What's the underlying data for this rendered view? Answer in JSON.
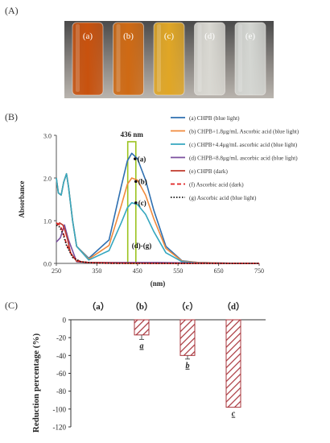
{
  "panels": {
    "a": "(A)",
    "b": "(B)",
    "c": "(C)"
  },
  "photo": {
    "vials": [
      {
        "label": "(a)",
        "color": "#c8520e"
      },
      {
        "label": "(b)",
        "color": "#cf6a14"
      },
      {
        "label": "(c)",
        "color": "#e0a626"
      },
      {
        "label": "(d)",
        "color": "#d9d8d2"
      },
      {
        "label": "(e)",
        "color": "#d4d6d2"
      }
    ]
  },
  "chart_data": [
    {
      "type": "line",
      "xlabel": "(nm)",
      "ylabel": "Absorbance",
      "xlim": [
        250,
        750
      ],
      "ylim": [
        0,
        3.0
      ],
      "xticks": [
        "250",
        "350",
        "450",
        "550",
        "650",
        "750"
      ],
      "yticks": [
        "0.0",
        "1.0",
        "2.0",
        "3.0"
      ],
      "highlight": {
        "label": "436 nm",
        "x_range": [
          426,
          446
        ]
      },
      "curve_labels": [
        {
          "text": "(a)",
          "x": 450,
          "y": 2.45
        },
        {
          "text": "(b)",
          "x": 452,
          "y": 1.92
        },
        {
          "text": "(c)",
          "x": 452,
          "y": 1.42
        },
        {
          "text": "(d)-(g)",
          "x": 436,
          "y": 0.42
        }
      ],
      "legend": [
        "(a) CHPB (blue light)",
        "(b) CHPB+1.8μg/mL  Ascorbic acid (blue light)",
        "(c) CHPB+4.4μg/mL  ascorbic acid (blue light)",
        "(d) CHPB+8.8μg/mL  ascorbic acid (blue light)",
        "(e) CHPB (dark)",
        "(f) Ascorbic acid (dark)",
        "(g) Ascorbic acid (blue light)"
      ],
      "series": [
        {
          "color": "#2e6fb0",
          "style": "solid",
          "x": [
            250,
            255,
            262,
            268,
            275,
            280,
            290,
            300,
            330,
            380,
            410,
            425,
            436,
            450,
            470,
            490,
            520,
            560,
            600,
            650,
            700,
            750
          ],
          "y": [
            2.0,
            1.65,
            1.6,
            1.9,
            2.1,
            1.8,
            1.0,
            0.4,
            0.12,
            0.55,
            1.8,
            2.4,
            2.58,
            2.45,
            1.95,
            1.25,
            0.4,
            0.06,
            0.02,
            0.01,
            0.0,
            0.0
          ]
        },
        {
          "color": "#f08a3c",
          "style": "solid",
          "x": [
            250,
            255,
            262,
            268,
            275,
            280,
            290,
            300,
            330,
            380,
            410,
            425,
            436,
            450,
            470,
            490,
            520,
            560,
            600,
            650,
            700,
            750
          ],
          "y": [
            2.0,
            1.65,
            1.6,
            1.9,
            2.1,
            1.8,
            1.0,
            0.4,
            0.1,
            0.42,
            1.35,
            1.85,
            2.0,
            1.95,
            1.6,
            1.05,
            0.35,
            0.05,
            0.02,
            0.01,
            0.0,
            0.0
          ]
        },
        {
          "color": "#35a7bf",
          "style": "solid",
          "x": [
            250,
            255,
            262,
            268,
            275,
            280,
            290,
            300,
            330,
            380,
            410,
            425,
            436,
            450,
            470,
            490,
            520,
            560,
            600,
            650,
            700,
            750
          ],
          "y": [
            2.0,
            1.65,
            1.6,
            1.9,
            2.1,
            1.8,
            1.0,
            0.4,
            0.08,
            0.3,
            0.95,
            1.3,
            1.42,
            1.38,
            1.15,
            0.75,
            0.25,
            0.04,
            0.01,
            0.0,
            0.0,
            0.0
          ]
        },
        {
          "color": "#7b4f9e",
          "style": "solid",
          "x": [
            250,
            260,
            270,
            280,
            300,
            330,
            400,
            500,
            600,
            750
          ],
          "y": [
            0.5,
            0.6,
            0.9,
            0.55,
            0.04,
            0.02,
            0.02,
            0.02,
            0.01,
            0.0
          ]
        },
        {
          "color": "#c0392b",
          "style": "solid",
          "x": [
            250,
            258,
            266,
            272,
            278,
            285,
            300,
            330,
            400,
            500,
            750
          ],
          "y": [
            0.88,
            0.95,
            0.9,
            0.75,
            0.55,
            0.25,
            0.05,
            0.02,
            0.01,
            0.0,
            0.0
          ]
        },
        {
          "color": "#e02020",
          "style": "dashed",
          "x": [
            250,
            258,
            266,
            275,
            290,
            310,
            340,
            400,
            500,
            750
          ],
          "y": [
            0.95,
            0.9,
            0.75,
            0.45,
            0.15,
            0.04,
            0.01,
            0.0,
            0.0,
            0.0
          ]
        },
        {
          "color": "#111111",
          "style": "dotted",
          "x": [
            250,
            258,
            266,
            275,
            290,
            310,
            340,
            400,
            500,
            750
          ],
          "y": [
            0.9,
            0.85,
            0.7,
            0.42,
            0.14,
            0.04,
            0.01,
            0.0,
            0.0,
            0.0
          ]
        }
      ]
    },
    {
      "type": "bar",
      "ylabel": "Reduction percentage (%)",
      "ylim": [
        -120,
        0
      ],
      "yticks": [
        "0",
        "-20",
        "-40",
        "-60",
        "-80",
        "-100",
        "-120"
      ],
      "categories": [
        "（a）",
        "（b）",
        "（c）",
        "（d）"
      ],
      "values": [
        0,
        -17,
        -40,
        -98
      ],
      "errors": [
        0,
        5,
        4,
        0
      ],
      "letters": [
        "",
        "a",
        "b",
        "c"
      ],
      "bar_color": "#a8343b"
    }
  ]
}
